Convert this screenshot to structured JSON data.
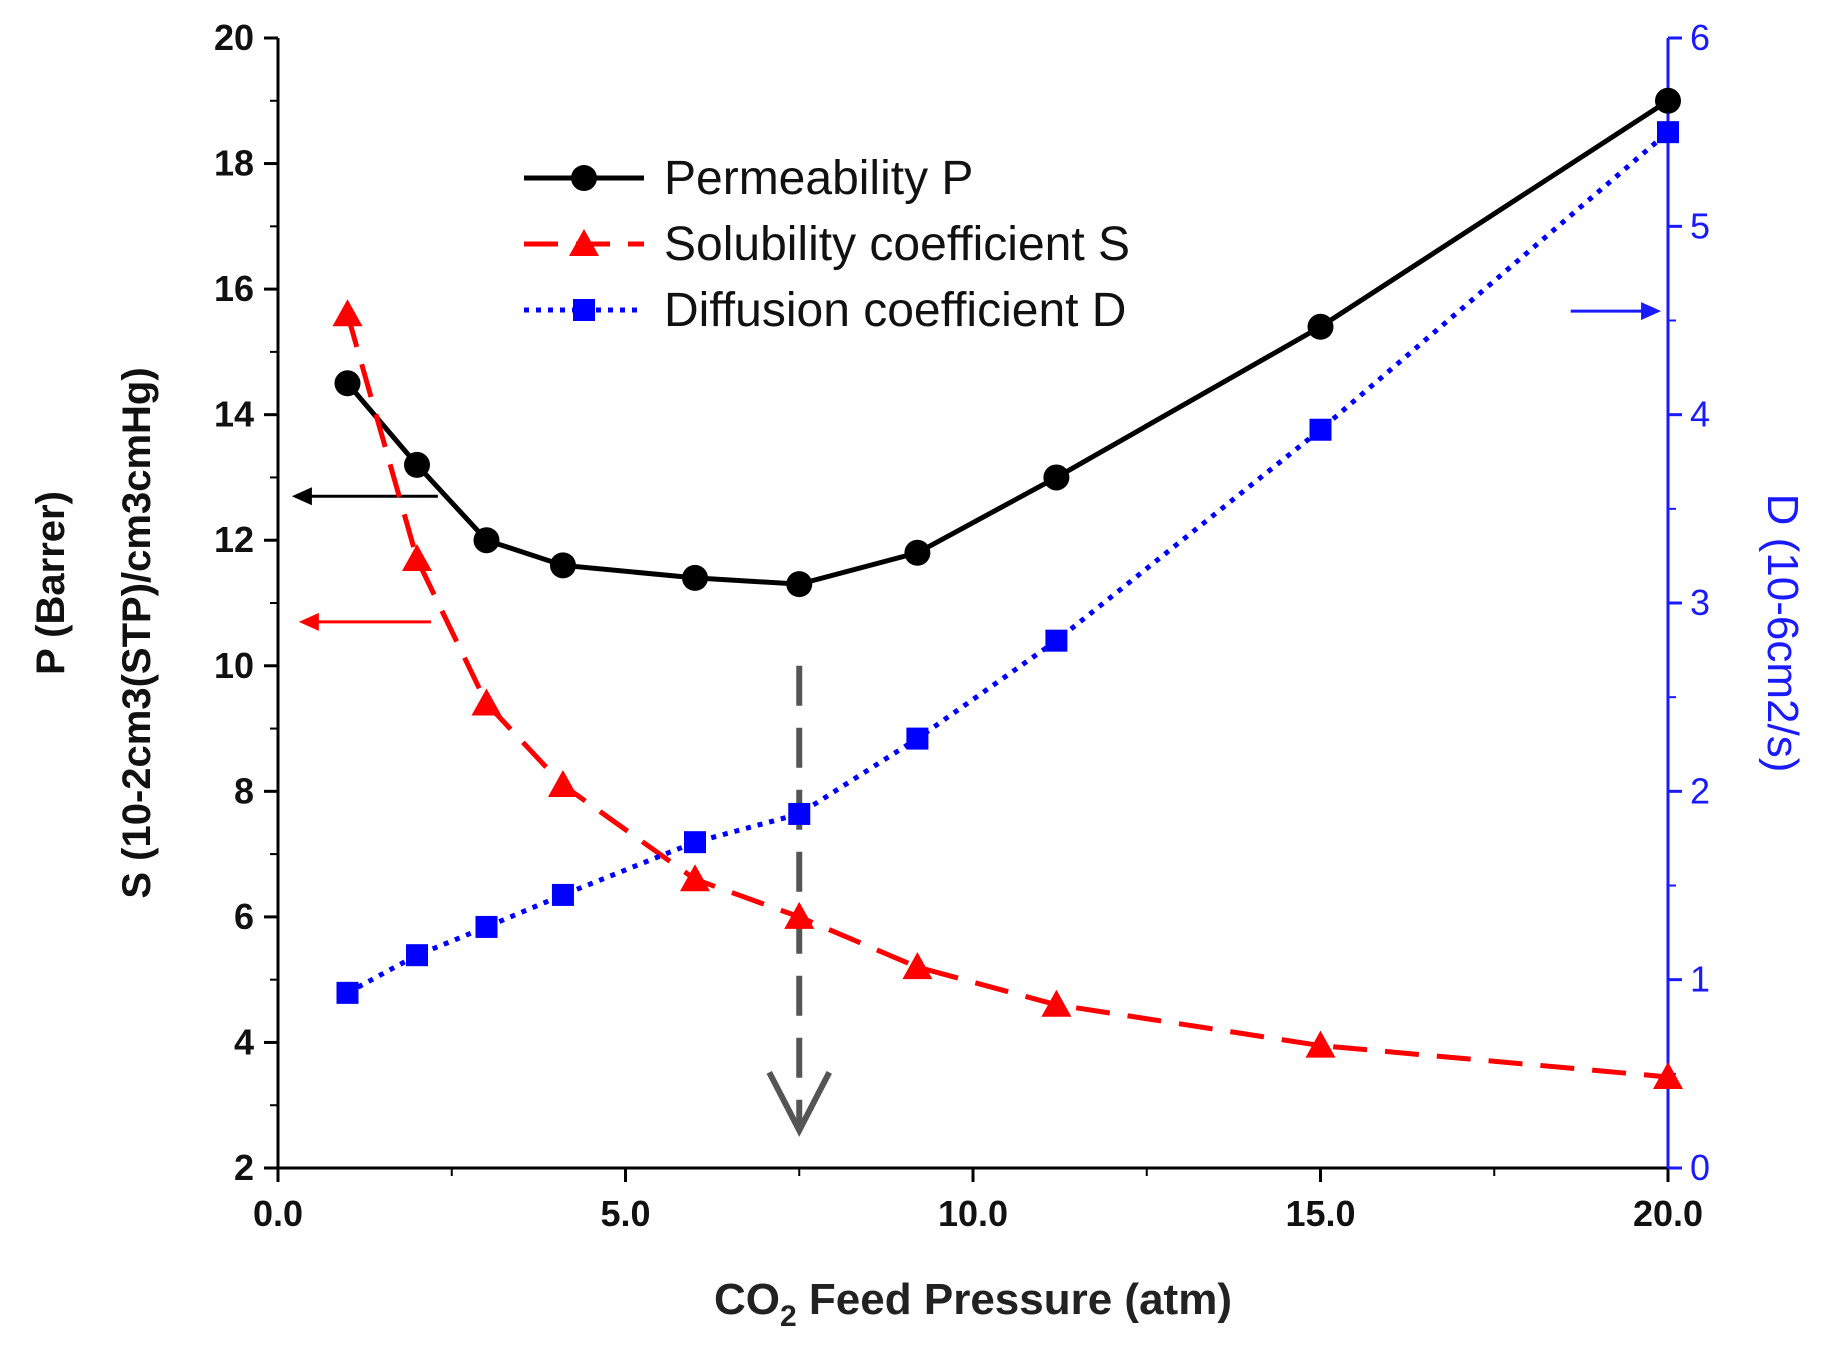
{
  "chart_data": {
    "type": "line",
    "xlabel": "CO2 Feed Pressure (atm)",
    "xlabel_parts": {
      "pre": "CO",
      "sub": "2",
      "post": " Feed Pressure (atm)"
    },
    "xlim": [
      0,
      20
    ],
    "xticks": [
      "0.0",
      "5.0",
      "10.0",
      "15.0",
      "20.0"
    ],
    "xtick_values": [
      0,
      5,
      10,
      15,
      20
    ],
    "ylim_left": [
      2,
      20
    ],
    "yticks_left": [
      2,
      4,
      6,
      8,
      10,
      12,
      14,
      16,
      18,
      20
    ],
    "ylim_right": [
      0,
      6
    ],
    "yticks_right": [
      0,
      1,
      2,
      3,
      4,
      5,
      6
    ],
    "ylabel_left_line1": "P (Barrer)",
    "ylabel_left_line2": "S (10-2cm3(STP)/cm3cmHg)",
    "ylabel_right": "D (10-6cm2/s)",
    "grid": false,
    "legend_placement": "top-center",
    "series": [
      {
        "name": "Permeability P",
        "axis": "left",
        "color": "#000000",
        "marker": "circle",
        "linestyle": "solid",
        "x": [
          1,
          2,
          3,
          4.1,
          6,
          7.5,
          9.2,
          11.2,
          15,
          20
        ],
        "y": [
          14.5,
          13.2,
          12.0,
          11.6,
          11.4,
          11.3,
          11.8,
          13.0,
          15.4,
          19.0
        ]
      },
      {
        "name": "Solubility coefficient S",
        "axis": "left",
        "color": "#ff0000",
        "marker": "triangle",
        "linestyle": "dashed",
        "x": [
          1,
          2,
          3,
          4.1,
          6,
          7.5,
          9.2,
          11.2,
          15,
          20
        ],
        "y": [
          15.6,
          11.7,
          9.4,
          8.1,
          6.6,
          6.0,
          5.2,
          4.6,
          3.95,
          3.45
        ]
      },
      {
        "name": "Diffusion coefficient D",
        "axis": "right",
        "color": "#0000ff",
        "marker": "square",
        "linestyle": "dotted",
        "x": [
          1,
          2,
          3,
          4.1,
          6,
          7.5,
          9.2,
          11.2,
          15,
          20
        ],
        "y": [
          0.93,
          1.13,
          1.28,
          1.45,
          1.73,
          1.88,
          2.28,
          2.8,
          3.92,
          5.5
        ]
      }
    ],
    "annotations": [
      {
        "type": "arrow",
        "direction": "left",
        "color": "#000000",
        "y_left": 12.7,
        "x_from": 2.3,
        "x_to": 0.2
      },
      {
        "type": "arrow",
        "direction": "left",
        "color": "#ff0000",
        "y_left": 10.7,
        "x_from": 2.2,
        "x_to": 0.3
      },
      {
        "type": "arrow",
        "direction": "right",
        "color": "#1a1aff",
        "y_right": 4.55,
        "x_from": 18.6,
        "x_to": 19.9
      },
      {
        "type": "arrow",
        "direction": "down",
        "color": "#555555",
        "x": 7.5,
        "y_from": 10.0,
        "y_to": 2.6
      }
    ]
  }
}
